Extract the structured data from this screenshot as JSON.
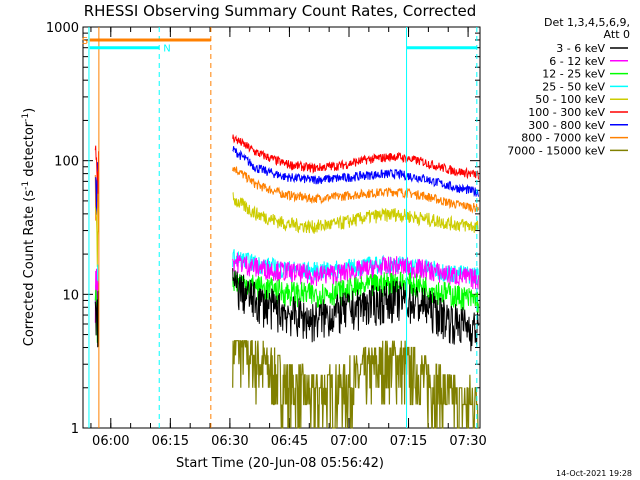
{
  "chart_data": {
    "type": "line",
    "title": "RHESSI Observing Summary Count Rates, Corrected",
    "xlabel": "Start Time (20-Jun-08 05:56:42)",
    "ylabel_main": "Corrected Count Rate (s",
    "ylabel_sup1": "-1",
    "ylabel_mid": " detector",
    "ylabel_sup2": "-1",
    "ylabel_end": ")",
    "yscale": "log",
    "ylim": [
      1,
      1000
    ],
    "xlim_minutes_after_0556_42": [
      -3.7,
      96.3
    ],
    "x_ticks": [
      {
        "label": "06:00",
        "t": 3.3
      },
      {
        "label": "06:15",
        "t": 18.3
      },
      {
        "label": "06:30",
        "t": 33.3
      },
      {
        "label": "06:45",
        "t": 48.3
      },
      {
        "label": "07:00",
        "t": 63.3
      },
      {
        "label": "07:15",
        "t": 78.3
      },
      {
        "label": "07:30",
        "t": 93.3
      }
    ],
    "y_ticks": [
      {
        "label": "1",
        "value": 1
      },
      {
        "label": "10",
        "value": 10
      },
      {
        "label": "100",
        "value": 100
      },
      {
        "label": "1000",
        "value": 1000
      }
    ],
    "legend_header": [
      "Det 1,3,4,5,6,9,",
      "Att 0"
    ],
    "legend_position": "right",
    "series": [
      {
        "name": "3 - 6 keV",
        "color": "#000000",
        "t": [
          34,
          40,
          47,
          54,
          61,
          68,
          75,
          82,
          89,
          96
        ],
        "values": [
          12,
          9,
          7.5,
          6.5,
          7.5,
          8.5,
          9.5,
          8.5,
          6.5,
          5.5
        ]
      },
      {
        "name": "6 - 12 keV",
        "color": "#ff00ff",
        "t": [
          34,
          40,
          47,
          54,
          61,
          68,
          75,
          82,
          89,
          96
        ],
        "values": [
          18,
          16,
          15,
          14,
          14.5,
          15.5,
          16.5,
          15.5,
          14,
          13
        ]
      },
      {
        "name": "12 - 25 keV",
        "color": "#00ff00",
        "t": [
          34,
          40,
          47,
          54,
          61,
          68,
          75,
          82,
          89,
          96
        ],
        "values": [
          13,
          11.5,
          10.5,
          10,
          10.5,
          11.5,
          12.5,
          11.5,
          10,
          9
        ]
      },
      {
        "name": "25 - 50 keV",
        "color": "#00ffff",
        "t": [
          34,
          40,
          47,
          54,
          61,
          68,
          75,
          82,
          89,
          96
        ],
        "values": [
          19,
          17,
          15.5,
          15,
          15.5,
          16.5,
          17,
          16,
          14.5,
          14
        ]
      },
      {
        "name": "50 - 100 keV",
        "color": "#cccc00",
        "t": [
          34,
          40,
          47,
          54,
          61,
          68,
          75,
          82,
          89,
          96
        ],
        "values": [
          52,
          40,
          34,
          32,
          34,
          38,
          40,
          37,
          34,
          32
        ]
      },
      {
        "name": "100 - 300 keV",
        "color": "#ff0000",
        "t": [
          34,
          40,
          47,
          54,
          61,
          68,
          75,
          82,
          89,
          96
        ],
        "values": [
          150,
          115,
          95,
          88,
          92,
          102,
          108,
          98,
          85,
          78
        ]
      },
      {
        "name": "300 - 800 keV",
        "color": "#0000ff",
        "t": [
          34,
          40,
          47,
          54,
          61,
          68,
          75,
          82,
          89,
          96
        ],
        "values": [
          122,
          88,
          76,
          72,
          74,
          78,
          80,
          74,
          64,
          58
        ]
      },
      {
        "name": "800 - 7000 keV",
        "color": "#ff8000",
        "t": [
          34,
          40,
          47,
          54,
          61,
          68,
          75,
          82,
          89,
          96
        ],
        "values": [
          90,
          66,
          56,
          52,
          54,
          57,
          59,
          55,
          48,
          44
        ]
      },
      {
        "name": "7000 - 15000 keV",
        "color": "#808000",
        "t": [
          34,
          40,
          47,
          54,
          61,
          68,
          75,
          82,
          89,
          96
        ],
        "values": [
          4,
          3,
          2,
          1.6,
          1.8,
          2.4,
          3,
          2.2,
          1.5,
          1.4
        ]
      }
    ],
    "flag_bars": [
      {
        "label": "S",
        "color": "#ff8000",
        "t_start": -2,
        "t_end": 28.5,
        "level": 800
      },
      {
        "label": "N",
        "color": "#00ffff",
        "t_start": -2,
        "t_end": 15.5,
        "level": 700
      },
      {
        "label": "",
        "color": "#00ffff",
        "t_start": 77.8,
        "t_end": 95.5,
        "level": 700
      }
    ],
    "vertical_markers": [
      {
        "t": -2.2,
        "color": "#00ffff",
        "style": "solid"
      },
      {
        "t": 0.3,
        "color": "#ff8000",
        "style": "solid"
      },
      {
        "t": 15.5,
        "color": "#00ffff",
        "style": "dashed"
      },
      {
        "t": 28.5,
        "color": "#ff8000",
        "style": "dashed"
      },
      {
        "t": 77.8,
        "color": "#00ffff",
        "style": "solid"
      },
      {
        "t": 95.5,
        "color": "#00ffff",
        "style": "dashed"
      }
    ],
    "footer_date": "14-Oct-2021 19:28"
  }
}
